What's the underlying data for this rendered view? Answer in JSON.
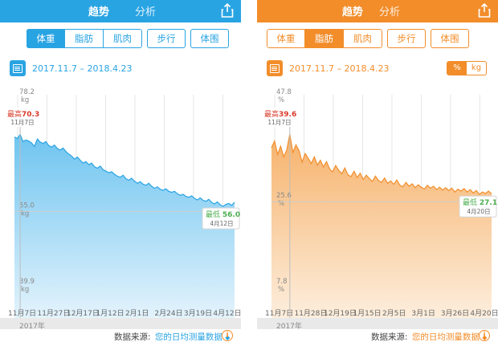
{
  "left": {
    "topbar": {
      "title": "趋势",
      "tab2": "分析"
    },
    "metric_tabs": [
      "体重",
      "脂肪",
      "肌肉",
      "步行",
      "体围"
    ],
    "active_metric": 0,
    "date_range": "2017.11.7 – 2018.4.23",
    "accent": "#29a4e3",
    "chart_data": {
      "type": "area",
      "y_tick_labels": [
        {
          "value": "78.2",
          "unit": "kg"
        },
        {
          "value": "55.0",
          "unit": "kg"
        },
        {
          "value": "39.9",
          "unit": "kg"
        }
      ],
      "ylim": [
        39.9,
        78.2
      ],
      "x_tick_labels": [
        "11月7日",
        "11月27日",
        "12月17日",
        "1月12日",
        "2月1日",
        "2月24日",
        "3月19日",
        "4月12日"
      ],
      "x_year": "2017年",
      "max": {
        "label": "最高",
        "value": "70.3",
        "date": "11月7日",
        "y": 70.3
      },
      "min": {
        "label": "最低",
        "value": "56.0",
        "date": "4月12日",
        "y": 56.0
      },
      "values": [
        69.8,
        69.5,
        70.3,
        68.9,
        69.2,
        69.0,
        68.6,
        67.9,
        69.4,
        68.8,
        68.5,
        68.9,
        68.1,
        67.8,
        68.2,
        67.5,
        67.2,
        67.6,
        66.9,
        66.4,
        66.0,
        65.4,
        65.8,
        65.2,
        64.6,
        64.9,
        64.3,
        64.6,
        63.9,
        63.6,
        64.0,
        63.3,
        63.0,
        62.7,
        62.9,
        62.4,
        62.0,
        61.8,
        62.2,
        61.5,
        61.2,
        61.6,
        61.0,
        60.6,
        60.9,
        60.4,
        60.2,
        60.6,
        60.0,
        59.6,
        59.9,
        59.4,
        59.2,
        59.5,
        59.0,
        58.8,
        59.0,
        58.5,
        58.2,
        58.4,
        58.0,
        57.8,
        58.1,
        57.6,
        57.3,
        57.7,
        57.2,
        57.0,
        57.4,
        56.8,
        56.5,
        56.9,
        56.3,
        56.0,
        56.4,
        56.6,
        56.2,
        56.8
      ]
    },
    "footer": {
      "source_label": "数据来源:",
      "source_value": "您的日均测量数据"
    }
  },
  "right": {
    "topbar": {
      "title": "趋势",
      "tab2": "分析"
    },
    "metric_tabs": [
      "体重",
      "脂肪",
      "肌肉",
      "步行",
      "体围"
    ],
    "active_metric": 1,
    "date_range": "2017.11.7 – 2018.4.23",
    "accent": "#f28d2a",
    "unit_toggle": [
      "%",
      "kg"
    ],
    "unit_active": 0,
    "chart_data": {
      "type": "area",
      "y_tick_labels": [
        {
          "value": "47.8",
          "unit": "%"
        },
        {
          "value": "25.6",
          "unit": "%"
        },
        {
          "value": "7.8",
          "unit": "%"
        }
      ],
      "ylim": [
        7.8,
        47.8
      ],
      "x_tick_labels": [
        "11月7日",
        "11月28日",
        "12月19日",
        "1月15日",
        "2月5日",
        "3月1日",
        "3月26日",
        "4月20日"
      ],
      "x_year": "2017年",
      "max": {
        "label": "最高",
        "value": "39.6",
        "date": "11月7日",
        "y": 39.6
      },
      "min": {
        "label": "最低",
        "value": "27.1",
        "date": "4月20日",
        "y": 27.1
      },
      "values": [
        36.8,
        38.2,
        35.4,
        37.1,
        34.9,
        36.3,
        39.6,
        35.8,
        37.4,
        36.2,
        33.8,
        35.6,
        34.6,
        33.5,
        34.9,
        33.2,
        34.2,
        32.8,
        33.9,
        32.4,
        31.8,
        33.1,
        32.1,
        31.4,
        32.6,
        31.2,
        30.8,
        31.9,
        30.6,
        31.5,
        30.2,
        31.1,
        30.4,
        29.8,
        30.9,
        30.0,
        29.6,
        30.5,
        29.4,
        29.9,
        29.2,
        30.1,
        29.0,
        28.7,
        29.6,
        28.8,
        29.3,
        28.5,
        29.1,
        28.6,
        28.2,
        29.0,
        28.4,
        28.8,
        28.1,
        28.6,
        28.0,
        28.5,
        27.9,
        28.4,
        27.6,
        28.2,
        27.8,
        28.3,
        27.6,
        28.1,
        27.4,
        27.9,
        27.1,
        27.6,
        27.3,
        27.8,
        27.2
      ]
    },
    "footer": {
      "source_label": "数据来源:",
      "source_value": "您的日均测量数据"
    }
  }
}
